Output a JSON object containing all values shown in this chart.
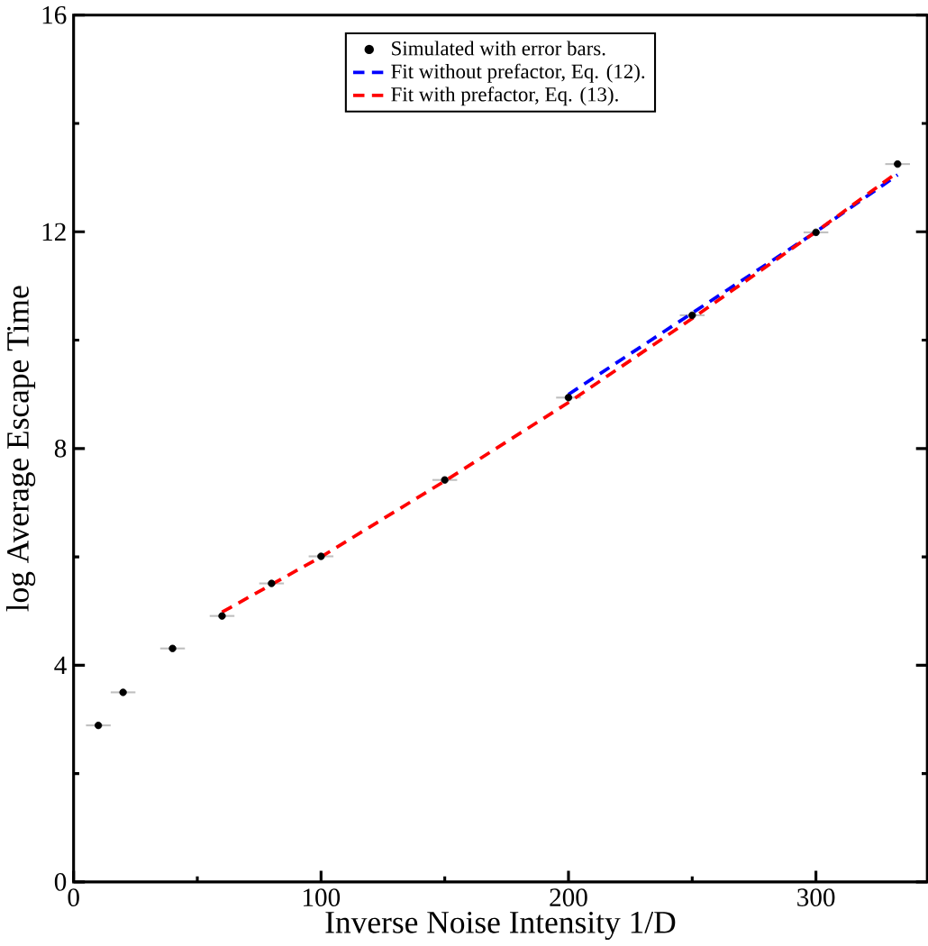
{
  "chart_data": {
    "type": "scatter",
    "xlabel": "Inverse Noise Intensity 1/D",
    "ylabel": "log Average Escape Time",
    "xlim": [
      0,
      345
    ],
    "ylim": [
      0,
      16
    ],
    "xticks": [
      0,
      100,
      200,
      300
    ],
    "yticks": [
      0,
      4,
      8,
      12,
      16
    ],
    "grid": false,
    "legend": "top",
    "series": [
      {
        "name": "Simulated with error bars.",
        "type": "scatter",
        "marker": "circle",
        "color": "#000000",
        "x": [
          10,
          20,
          40,
          60,
          80,
          100,
          150,
          200,
          250,
          300,
          333
        ],
        "values": [
          2.89,
          3.5,
          4.31,
          4.91,
          5.51,
          6.01,
          7.42,
          8.94,
          10.46,
          11.99,
          13.25
        ],
        "xerrors": [
          5,
          5,
          5,
          5,
          5,
          5,
          5,
          5,
          5,
          5,
          5
        ]
      },
      {
        "name": "Fit without prefactor, Eq. (12).",
        "type": "line",
        "marker": "none",
        "line_style": "dashed",
        "color": "#0000ff",
        "x": [
          200,
          250,
          300,
          333
        ],
        "values": [
          9.0,
          10.5,
          12.0,
          13.05
        ]
      },
      {
        "name": "Fit with  prefactor,   Eq. (13).",
        "type": "line",
        "marker": "none",
        "line_style": "dashed",
        "color": "#ff0000",
        "x": [
          60,
          100,
          150,
          200,
          250,
          300,
          333
        ],
        "values": [
          4.98,
          6.0,
          7.4,
          8.85,
          10.4,
          12.0,
          13.1
        ]
      }
    ]
  }
}
